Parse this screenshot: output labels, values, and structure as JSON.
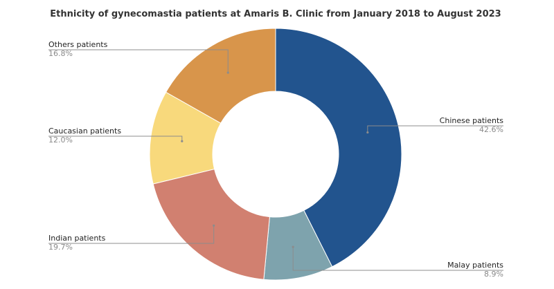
{
  "chart_data": {
    "type": "pie",
    "donut": true,
    "title": "Ethnicity of gynecomastia patients at Amaris B. Clinic from January 2018 to August 2023",
    "slices": [
      {
        "label": "Chinese patients",
        "pct_text": "42.6%",
        "value": 42.6,
        "color": "#22548e"
      },
      {
        "label": "Malay patients",
        "pct_text": "8.9%",
        "value": 8.9,
        "color": "#7ea3ad"
      },
      {
        "label": "Indian patients",
        "pct_text": "19.7%",
        "value": 19.7,
        "color": "#d18070"
      },
      {
        "label": "Caucasian patients",
        "pct_text": "12.0%",
        "value": 12.0,
        "color": "#f8d97c"
      },
      {
        "label": "Others patients",
        "pct_text": "16.8%",
        "value": 16.8,
        "color": "#d8954b"
      }
    ]
  }
}
